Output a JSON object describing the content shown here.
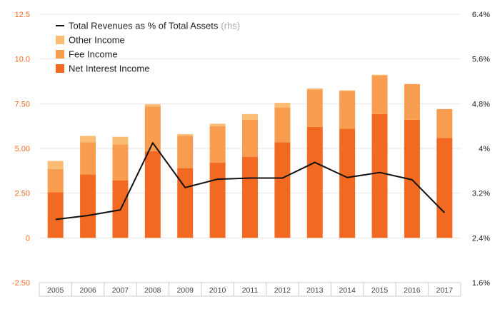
{
  "chart_data": {
    "type": "bar",
    "stacked": true,
    "categories": [
      "2005",
      "2006",
      "2007",
      "2008",
      "2009",
      "2010",
      "2011",
      "2012",
      "2013",
      "2014",
      "2015",
      "2016",
      "2017"
    ],
    "series": [
      {
        "name": "Net Interest Income",
        "axis": "left",
        "color": "#f26a21",
        "values": [
          2.55,
          3.55,
          3.22,
          4.85,
          3.9,
          4.2,
          4.52,
          5.35,
          6.2,
          6.1,
          6.92,
          6.6,
          5.58
        ]
      },
      {
        "name": "Fee Income",
        "axis": "left",
        "color": "#f89d4f",
        "values": [
          1.3,
          1.8,
          2.0,
          2.5,
          1.8,
          2.05,
          2.08,
          1.95,
          2.1,
          2.12,
          2.15,
          2.0,
          1.62
        ]
      },
      {
        "name": "Other Income",
        "axis": "left",
        "color": "#fbbd74",
        "values": [
          0.45,
          0.35,
          0.43,
          0.12,
          0.1,
          0.13,
          0.32,
          0.25,
          0.05,
          0.03,
          0.05,
          0.0,
          0.0
        ]
      },
      {
        "name": "Total Revenues as % of Total Assets",
        "axis": "right",
        "type": "line",
        "color": "#111111",
        "values": [
          2.73,
          2.8,
          2.9,
          4.1,
          3.3,
          3.45,
          3.47,
          3.47,
          3.75,
          3.48,
          3.57,
          3.44,
          2.85
        ]
      }
    ],
    "left_axis": {
      "ylim": [
        -2.5,
        12.5
      ],
      "ticks": [
        "-2.50",
        "0",
        "2.50",
        "5.00",
        "7.50",
        "10.0",
        "12.5"
      ],
      "tick_values": [
        -2.5,
        0,
        2.5,
        5.0,
        7.5,
        10.0,
        12.5
      ]
    },
    "right_axis": {
      "ylim": [
        1.6,
        6.4
      ],
      "ticks": [
        "1.6%",
        "2.4%",
        "3.2%",
        "4%",
        "4.8%",
        "5.6%",
        "6.4%"
      ],
      "tick_values": [
        1.6,
        2.4,
        3.2,
        4.0,
        4.8,
        5.6,
        6.4
      ]
    },
    "legend": {
      "position": "top-left",
      "entries": [
        {
          "label": "Total Revenues as % of Total Assets",
          "note": "(rhs)",
          "marker": "line",
          "color": "#111111"
        },
        {
          "label": "Other Income",
          "marker": "box",
          "color": "#fbbd74"
        },
        {
          "label": "Fee Income",
          "marker": "box",
          "color": "#f89d4f"
        },
        {
          "label": "Net Interest Income",
          "marker": "box",
          "color": "#f26a21"
        }
      ]
    },
    "grid": "horizontal"
  }
}
